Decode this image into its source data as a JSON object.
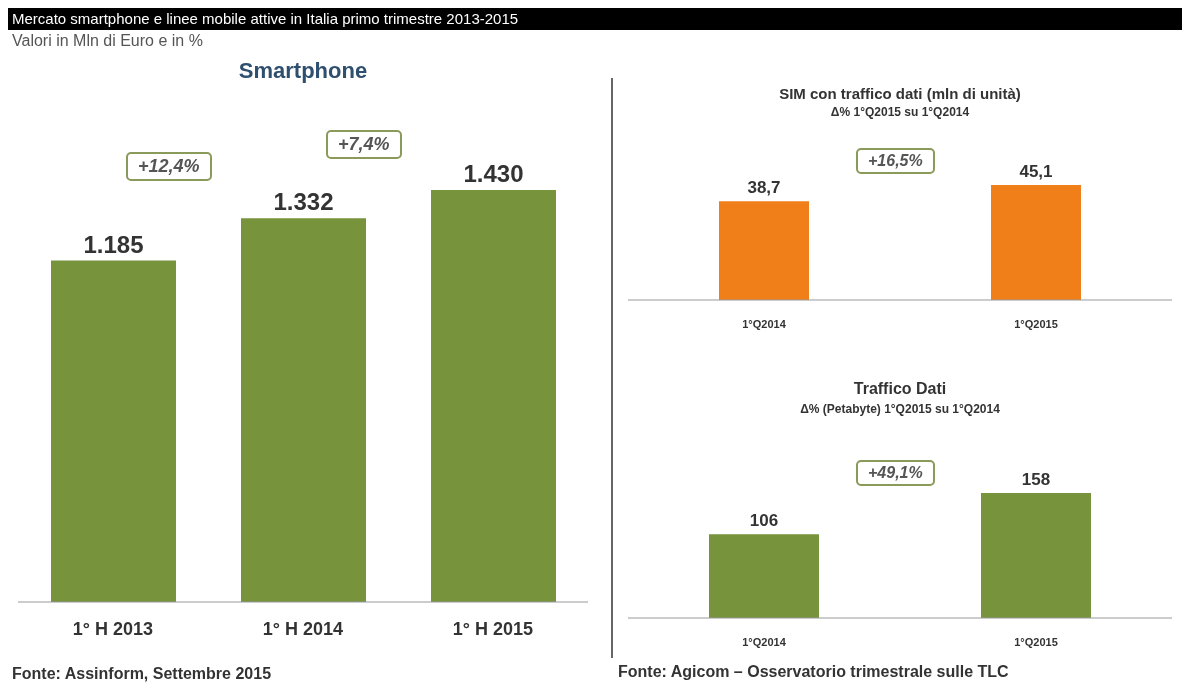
{
  "chart_data": [
    {
      "type": "bar",
      "subtitle": "Valori in Mln di Euro e in %",
      "title": "Smartphone",
      "categories": [
        "1° H 2013",
        "1° H 2014",
        "1° H 2015"
      ],
      "values": [
        1185,
        1332,
        1430
      ],
      "value_labels": [
        "1.185",
        "1.332",
        "1.430"
      ],
      "color": "#77933c",
      "annotations": [
        "Mercato smartphone e linee mobile attive in Italia primo trimestre 2013-2015",
        "+12,4%",
        "+7,4%",
        "Fonte: Assinform, Settembre 2015"
      ]
    },
    {
      "type": "bar",
      "title": "SIM con traffico dati (mln di unità)",
      "subtitle": "Δ% 1°Q2015 su 1°Q2014",
      "categories": [
        "1°Q2014",
        "1°Q2015"
      ],
      "values": [
        38.7,
        45.1
      ],
      "value_labels": [
        "38,7",
        "45,1"
      ],
      "color": "#f07f1a",
      "annotations": [
        "+16,5%"
      ]
    },
    {
      "type": "bar",
      "title": "Traffico Dati",
      "subtitle": "Δ% (Petabyte) 1°Q2015 su 1°Q2014",
      "categories": [
        "1°Q2014",
        "1°Q2015"
      ],
      "values": [
        106,
        158
      ],
      "value_labels": [
        "106",
        "158"
      ],
      "color": "#77933c",
      "annotations": [
        "+49,1%",
        "Fonte: Agicom – Osservatorio trimestrale sulle TLC"
      ]
    }
  ]
}
